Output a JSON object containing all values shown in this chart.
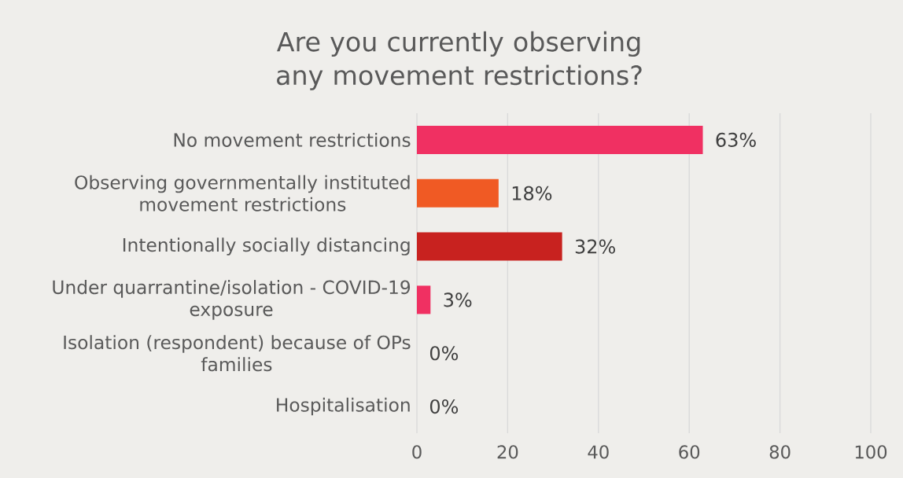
{
  "chart_data": {
    "type": "bar",
    "orientation": "horizontal",
    "title": "Are you currently observing any movement restrictions?",
    "categories": [
      "No movement restrictions",
      "Observing governmentally instituted movement restrictions",
      "Intentionally socially distancing",
      "Under quarrantine/isolation - COVID-19 exposure",
      "Isolation (respondent) because of OPs families",
      "Hospitalisation"
    ],
    "values": [
      63,
      18,
      32,
      3,
      0,
      0
    ],
    "colors": [
      "#f03062",
      "#f05a24",
      "#c8221f",
      "#f03062",
      "#f03062",
      "#f03062"
    ],
    "value_labels": [
      "63%",
      "18%",
      "32%",
      "3%",
      "0%",
      "0%"
    ],
    "xlim": [
      0,
      100
    ],
    "xticks": [
      0,
      20,
      40,
      60,
      80,
      100
    ],
    "grid": "x"
  }
}
